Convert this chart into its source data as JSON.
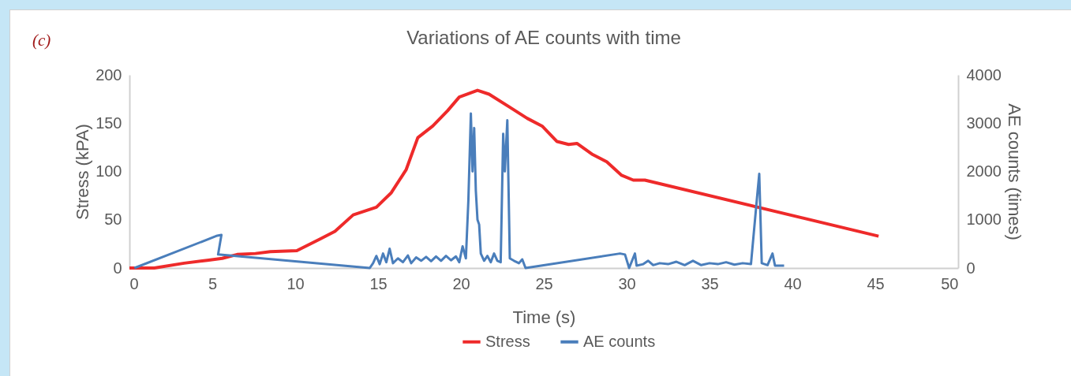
{
  "chart_data": {
    "type": "line",
    "title": "Variations of AE counts with time",
    "xlabel": "Time (s)",
    "ylabel": "Stress (kPA)",
    "y2label": "AE counts (times)",
    "annotations": [
      "(c)"
    ],
    "xlim": [
      0,
      50
    ],
    "xticks": [
      0,
      5,
      10,
      15,
      20,
      25,
      30,
      35,
      40,
      45,
      50
    ],
    "ylim": [
      0,
      200
    ],
    "yticks": [
      0,
      50,
      100,
      150,
      200
    ],
    "y2lim": [
      0,
      4000
    ],
    "y2ticks": [
      0,
      1000,
      2000,
      3000,
      4000
    ],
    "legend": "bottom",
    "grid": false,
    "series": [
      {
        "name": "Stress",
        "color": "#ee2a2a",
        "x": [
          0,
          1.5,
          3.3,
          4.7,
          5.6,
          6.5,
          7.6,
          8.5,
          10.1,
          11.5,
          12.4,
          13.5,
          14.9,
          15.8,
          16.7,
          17.4,
          18.3,
          19.2,
          19.9,
          21.0,
          21.7,
          22.9,
          24.0,
          24.9,
          25.8,
          26.5,
          27.0,
          27.9,
          28.8,
          29.7,
          30.4,
          31.1,
          45.2
        ],
        "values": [
          0,
          0,
          5,
          8,
          10,
          14,
          15,
          17,
          18,
          30,
          38,
          55,
          63,
          78,
          102,
          135,
          147,
          163,
          177,
          184,
          180,
          167,
          155,
          147,
          131,
          128,
          129,
          118,
          110,
          96,
          91,
          91,
          33
        ]
      },
      {
        "name": "AE counts",
        "color": "#4a7ebb",
        "axis": "y2",
        "x": [
          0.3,
          5.3,
          5.55,
          5.35,
          14.5,
          14.7,
          14.9,
          15.1,
          15.3,
          15.5,
          15.7,
          15.9,
          16.2,
          16.5,
          16.8,
          17.0,
          17.3,
          17.6,
          17.9,
          18.2,
          18.5,
          18.8,
          19.1,
          19.4,
          19.7,
          19.9,
          20.1,
          20.3,
          20.45,
          20.6,
          20.7,
          20.8,
          20.9,
          21.0,
          21.1,
          21.2,
          21.4,
          21.6,
          21.8,
          22.0,
          22.2,
          22.4,
          22.55,
          22.65,
          22.8,
          22.95,
          23.2,
          23.5,
          23.7,
          23.9,
          29.6,
          29.9,
          30.15,
          30.5,
          30.6,
          31.0,
          31.3,
          31.6,
          32.0,
          32.5,
          33.0,
          33.5,
          34.0,
          34.5,
          35.0,
          35.5,
          36.0,
          36.5,
          37.0,
          37.5,
          37.85,
          38.0,
          38.15,
          38.5,
          38.8,
          38.95,
          39.5
        ],
        "values": [
          0,
          670,
          686,
          280,
          0,
          100,
          250,
          80,
          300,
          120,
          400,
          100,
          200,
          120,
          260,
          100,
          220,
          150,
          230,
          140,
          240,
          150,
          250,
          160,
          240,
          120,
          450,
          200,
          1400,
          3200,
          2000,
          2900,
          1600,
          1000,
          900,
          300,
          150,
          250,
          120,
          300,
          150,
          120,
          2780,
          2000,
          3060,
          200,
          150,
          100,
          180,
          0,
          300,
          280,
          0,
          300,
          50,
          80,
          150,
          60,
          100,
          80,
          130,
          60,
          150,
          60,
          100,
          80,
          120,
          70,
          100,
          80,
          1400,
          1950,
          100,
          60,
          300,
          50,
          50
        ]
      }
    ]
  }
}
